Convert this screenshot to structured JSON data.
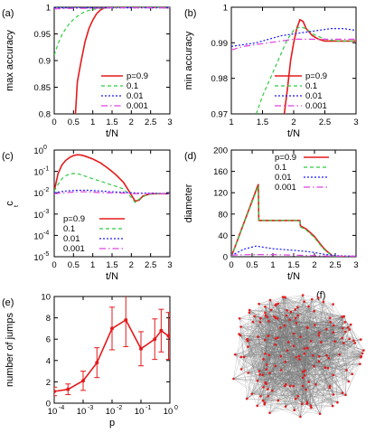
{
  "legend": {
    "labels": [
      "p=0.9",
      "0.1",
      "0.01",
      "0.001"
    ],
    "colors": [
      "#e41a1c",
      "#2ecc40",
      "#1a1aff",
      "#dd44dd"
    ],
    "dashes": [
      "",
      "4,3",
      "2,2",
      "7,3,1.5,3"
    ]
  },
  "chart_data": [
    {
      "id": "a",
      "label": "(a)",
      "type": "line",
      "xlabel": "t/N",
      "ylabel": "max accuracy",
      "xlim": [
        0,
        3
      ],
      "ylim": [
        0.8,
        1.0
      ],
      "xticks": [
        0,
        0.5,
        1,
        1.5,
        2,
        2.5,
        3
      ],
      "yticks": [
        0.8,
        0.85,
        0.9,
        0.95,
        1
      ],
      "xtick_labels": [
        "0",
        "0.5",
        "1",
        "1.5",
        "2",
        "2.5",
        "3"
      ],
      "ytick_labels": [
        "0.8",
        "0.85",
        "0.9",
        "0.95",
        "1"
      ],
      "legend_position": "bottom-right",
      "series": [
        {
          "name": "p=0.9",
          "x": [
            0.55,
            0.6,
            0.7,
            0.8,
            0.9,
            1.0,
            1.1,
            1.2,
            1.3,
            1.4,
            1.5,
            2.0,
            2.5,
            3.0
          ],
          "y": [
            0.8,
            0.86,
            0.9,
            0.935,
            0.96,
            0.976,
            0.988,
            0.995,
            0.999,
            1.0,
            1.0,
            1.0,
            1.0,
            0.999
          ]
        },
        {
          "name": "0.1",
          "x": [
            0.0,
            0.1,
            0.2,
            0.3,
            0.4,
            0.5,
            0.6,
            0.7,
            0.8,
            1.0,
            1.2,
            1.5,
            2.0,
            3.0
          ],
          "y": [
            0.91,
            0.932,
            0.948,
            0.96,
            0.97,
            0.977,
            0.983,
            0.988,
            0.992,
            0.996,
            0.998,
            0.999,
            1.0,
            0.999
          ]
        },
        {
          "name": "0.01",
          "x": [
            0.0,
            0.5,
            1.0,
            1.5,
            2.0,
            2.5,
            3.0
          ],
          "y": [
            0.999,
            0.999,
            0.999,
            0.999,
            0.999,
            0.999,
            0.999
          ]
        },
        {
          "name": "0.001",
          "x": [
            0.0,
            0.5,
            1.0,
            1.5,
            2.0,
            2.5,
            3.0
          ],
          "y": [
            0.997,
            0.998,
            0.998,
            0.999,
            0.999,
            0.999,
            0.999
          ]
        }
      ]
    },
    {
      "id": "b",
      "label": "(b)",
      "type": "line",
      "xlabel": "t/N",
      "ylabel": "min accuracy",
      "xlim": [
        1,
        3
      ],
      "ylim": [
        0.97,
        1.0
      ],
      "xticks": [
        1,
        1.5,
        2,
        2.5,
        3
      ],
      "yticks": [
        0.97,
        0.98,
        0.99,
        1
      ],
      "xtick_labels": [
        "1",
        "1.5",
        "2",
        "2.5",
        "3"
      ],
      "ytick_labels": [
        "0.97",
        "0.98",
        "0.99",
        "1"
      ],
      "legend_position": "bottom-right",
      "series": [
        {
          "name": "p=0.9",
          "x": [
            1.85,
            1.9,
            1.95,
            2.0,
            2.05,
            2.1,
            2.15,
            2.2,
            2.3,
            2.4,
            2.5,
            2.6,
            2.8,
            3.0
          ],
          "y": [
            0.97,
            0.977,
            0.985,
            0.99,
            0.994,
            0.9965,
            0.996,
            0.994,
            0.992,
            0.991,
            0.9905,
            0.9905,
            0.9905,
            0.9905
          ]
        },
        {
          "name": "0.1",
          "x": [
            1.4,
            1.5,
            1.6,
            1.7,
            1.8,
            1.9,
            2.0,
            2.1,
            2.2,
            2.3,
            2.5,
            2.7,
            3.0
          ],
          "y": [
            0.97,
            0.975,
            0.979,
            0.983,
            0.987,
            0.991,
            0.9935,
            0.9945,
            0.994,
            0.9925,
            0.991,
            0.9905,
            0.9905
          ]
        },
        {
          "name": "0.01",
          "x": [
            1.0,
            1.2,
            1.4,
            1.6,
            1.8,
            2.0,
            2.2,
            2.4,
            2.6,
            2.8,
            3.0
          ],
          "y": [
            0.989,
            0.9895,
            0.99,
            0.991,
            0.992,
            0.9925,
            0.993,
            0.9935,
            0.994,
            0.994,
            0.9935
          ]
        },
        {
          "name": "0.001",
          "x": [
            1.0,
            1.2,
            1.4,
            1.6,
            1.8,
            2.0,
            2.2,
            2.4,
            2.6,
            2.8,
            3.0
          ],
          "y": [
            0.988,
            0.989,
            0.9895,
            0.99,
            0.9905,
            0.991,
            0.991,
            0.991,
            0.991,
            0.991,
            0.991
          ]
        }
      ]
    },
    {
      "id": "c",
      "label": "(c)",
      "type": "line",
      "xlabel": "t/N",
      "ylabel": "c_t",
      "yscale": "log",
      "xlim": [
        0,
        3
      ],
      "ylim": [
        1e-05,
        1
      ],
      "xticks": [
        0,
        0.5,
        1,
        1.5,
        2,
        2.5,
        3
      ],
      "yticks": [
        1e-05,
        0.0001,
        0.001,
        0.01,
        0.1,
        1
      ],
      "xtick_labels": [
        "0",
        "0.5",
        "1",
        "1.5",
        "2",
        "2.5",
        "3"
      ],
      "ytick_labels": [
        "10",
        "10",
        "10",
        "10",
        "10",
        "10"
      ],
      "ytick_exponents": [
        "-5",
        "-4",
        "-3",
        "-2",
        "-1",
        "0"
      ],
      "legend_position": "bottom-left",
      "series": [
        {
          "name": "p=0.9",
          "x": [
            0.0,
            0.1,
            0.2,
            0.3,
            0.4,
            0.5,
            0.6,
            0.7,
            0.8,
            1.0,
            1.2,
            1.4,
            1.6,
            1.8,
            2.0,
            2.1,
            2.2,
            2.3,
            2.5,
            2.8,
            3.0
          ],
          "y": [
            0.012,
            0.08,
            0.2,
            0.33,
            0.45,
            0.55,
            0.6,
            0.58,
            0.52,
            0.38,
            0.25,
            0.14,
            0.07,
            0.03,
            0.008,
            0.004,
            0.0045,
            0.007,
            0.009,
            0.009,
            0.009
          ]
        },
        {
          "name": "0.1",
          "x": [
            0.0,
            0.1,
            0.2,
            0.3,
            0.4,
            0.5,
            0.6,
            0.7,
            0.8,
            1.0,
            1.2,
            1.4,
            1.6,
            1.8,
            2.0,
            2.1,
            2.2,
            2.4,
            2.6,
            3.0
          ],
          "y": [
            0.012,
            0.025,
            0.045,
            0.062,
            0.075,
            0.08,
            0.078,
            0.07,
            0.06,
            0.045,
            0.035,
            0.026,
            0.02,
            0.015,
            0.006,
            0.0035,
            0.005,
            0.008,
            0.009,
            0.009
          ]
        },
        {
          "name": "0.01",
          "x": [
            0.0,
            0.3,
            0.6,
            0.9,
            1.2,
            1.5,
            1.8,
            2.0,
            2.2,
            2.5,
            3.0
          ],
          "y": [
            0.01,
            0.012,
            0.013,
            0.013,
            0.012,
            0.011,
            0.0105,
            0.01,
            0.0095,
            0.0095,
            0.009
          ]
        },
        {
          "name": "0.001",
          "x": [
            0.0,
            0.3,
            0.6,
            0.9,
            1.2,
            1.5,
            1.8,
            2.0,
            2.2,
            2.5,
            3.0
          ],
          "y": [
            0.009,
            0.01,
            0.011,
            0.011,
            0.01,
            0.0098,
            0.0095,
            0.0092,
            0.009,
            0.009,
            0.009
          ]
        }
      ]
    },
    {
      "id": "d",
      "label": "(d)",
      "type": "line",
      "xlabel": "t/N",
      "ylabel": "diameter",
      "xlim": [
        0,
        3
      ],
      "ylim": [
        0,
        200
      ],
      "xticks": [
        0,
        0.5,
        1,
        1.5,
        2,
        2.5,
        3
      ],
      "yticks": [
        0,
        40,
        80,
        120,
        160,
        200
      ],
      "xtick_labels": [
        "0",
        "0.5",
        "1",
        "1.5",
        "2",
        "2.5",
        "3"
      ],
      "ytick_labels": [
        "0",
        "40",
        "80",
        "120",
        "160",
        "200"
      ],
      "legend_position": "top-right",
      "series": [
        {
          "name": "p=0.9",
          "x": [
            0.0,
            0.65,
            0.66,
            1.65,
            1.66,
            1.8,
            1.9,
            2.0,
            2.1,
            2.2,
            2.3,
            2.4,
            2.45,
            3.0
          ],
          "y": [
            0,
            136,
            68,
            68,
            58,
            52,
            45,
            38,
            28,
            18,
            10,
            4,
            0,
            0
          ]
        },
        {
          "name": "0.1",
          "x": [
            0.0,
            0.65,
            0.66,
            1.65,
            1.66,
            1.8,
            1.9,
            2.0,
            2.1,
            2.2,
            2.3,
            2.4,
            2.45,
            3.0
          ],
          "y": [
            0,
            133,
            68,
            68,
            56,
            50,
            43,
            36,
            26,
            16,
            9,
            3,
            0,
            0
          ]
        },
        {
          "name": "0.01",
          "x": [
            0.0,
            0.3,
            0.6,
            1.0,
            1.5,
            1.8,
            2.0,
            2.2,
            2.5,
            3.0
          ],
          "y": [
            2,
            14,
            20,
            15,
            12,
            10,
            8,
            5,
            2,
            1
          ]
        },
        {
          "name": "0.001",
          "x": [
            0.0,
            0.5,
            1.0,
            1.5,
            2.0,
            2.5,
            3.0
          ],
          "y": [
            3,
            4,
            4,
            3,
            2,
            1,
            1
          ]
        }
      ]
    },
    {
      "id": "e",
      "label": "(e)",
      "type": "line",
      "xlabel": "p",
      "ylabel": "number of jumps",
      "xscale": "log",
      "xlim": [
        0.0001,
        1
      ],
      "ylim": [
        0,
        10
      ],
      "xticks": [
        0.0001,
        0.001,
        0.01,
        0.1,
        1
      ],
      "yticks": [
        0,
        2,
        4,
        6,
        8,
        10
      ],
      "xtick_labels": [
        "10",
        "10",
        "10",
        "10",
        "10"
      ],
      "xtick_exponents": [
        "-4",
        "-3",
        "-2",
        "-1",
        "0"
      ],
      "ytick_labels": [
        "0",
        "2",
        "4",
        "6",
        "8",
        "10"
      ],
      "series": [
        {
          "x": [
            0.0001,
            0.0003,
            0.001,
            0.003,
            0.01,
            0.03,
            0.1,
            0.3,
            0.5,
            0.9
          ],
          "y": [
            1.1,
            1.3,
            2.1,
            3.8,
            7.0,
            7.8,
            5.1,
            6.0,
            6.8,
            6.3
          ],
          "err": [
            0.4,
            0.5,
            0.9,
            1.4,
            2.0,
            2.5,
            1.6,
            1.9,
            2.0,
            2.2
          ]
        }
      ]
    }
  ],
  "panel_f": {
    "label": "(f)",
    "node_color": "#e41a1c",
    "edge_color": "#777777"
  }
}
